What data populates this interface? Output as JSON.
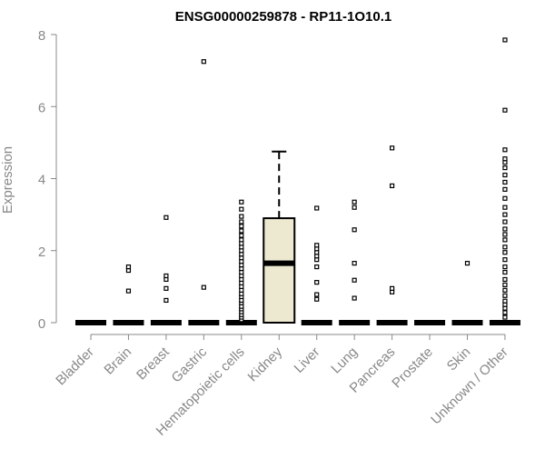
{
  "chart_data": {
    "type": "boxplot",
    "title": "ENSG00000259878 - RP11-1O10.1",
    "ylabel": "Expression",
    "xlabel": "",
    "ylim": [
      0,
      8
    ],
    "yticks": [
      0,
      2,
      4,
      6,
      8
    ],
    "grid": false,
    "legend": "none",
    "categories": [
      "Bladder",
      "Brain",
      "Breast",
      "Gastric",
      "Hematopoietic cells",
      "Kidney",
      "Liver",
      "Lung",
      "Pancreas",
      "Prostate",
      "Skin",
      "Unknown / Other"
    ],
    "boxes": [
      {
        "category": "Bladder",
        "q1": 0,
        "median": 0,
        "q3": 0,
        "whisker_low": 0,
        "whisker_high": 0,
        "outliers": []
      },
      {
        "category": "Brain",
        "q1": 0,
        "median": 0,
        "q3": 0,
        "whisker_low": 0,
        "whisker_high": 0,
        "outliers": [
          0.88,
          1.45,
          1.55
        ]
      },
      {
        "category": "Breast",
        "q1": 0,
        "median": 0,
        "q3": 0,
        "whisker_low": 0,
        "whisker_high": 0,
        "outliers": [
          0.62,
          0.95,
          1.2,
          1.3,
          2.92
        ]
      },
      {
        "category": "Gastric",
        "q1": 0,
        "median": 0,
        "q3": 0,
        "whisker_low": 0,
        "whisker_high": 0,
        "outliers": [
          0.98,
          7.25
        ]
      },
      {
        "category": "Hematopoietic cells",
        "q1": 0,
        "median": 0,
        "q3": 0,
        "whisker_low": 0,
        "whisker_high": 0,
        "outliers": [
          0.08,
          0.15,
          0.22,
          0.3,
          0.38,
          0.45,
          0.55,
          0.62,
          0.72,
          0.8,
          0.9,
          1.0,
          1.1,
          1.2,
          1.3,
          1.4,
          1.5,
          1.6,
          1.7,
          1.8,
          1.9,
          2.0,
          2.1,
          2.2,
          2.3,
          2.42,
          2.55,
          2.68,
          2.8,
          2.95,
          3.15,
          3.35
        ]
      },
      {
        "category": "Kidney",
        "q1": 0,
        "median": 1.65,
        "q3": 2.9,
        "whisker_low": 0,
        "whisker_high": 4.75,
        "outliers": []
      },
      {
        "category": "Liver",
        "q1": 0,
        "median": 0,
        "q3": 0,
        "whisker_low": 0,
        "whisker_high": 0,
        "outliers": [
          0.65,
          0.78,
          1.12,
          1.55,
          1.75,
          1.85,
          1.95,
          2.05,
          2.15,
          3.18
        ]
      },
      {
        "category": "Lung",
        "q1": 0,
        "median": 0,
        "q3": 0,
        "whisker_low": 0,
        "whisker_high": 0,
        "outliers": [
          0.68,
          1.18,
          1.65,
          2.58,
          3.2,
          3.35
        ]
      },
      {
        "category": "Pancreas",
        "q1": 0,
        "median": 0,
        "q3": 0,
        "whisker_low": 0,
        "whisker_high": 0,
        "outliers": [
          0.85,
          0.95,
          3.8,
          4.85
        ]
      },
      {
        "category": "Prostate",
        "q1": 0,
        "median": 0,
        "q3": 0,
        "whisker_low": 0,
        "whisker_high": 0,
        "outliers": []
      },
      {
        "category": "Skin",
        "q1": 0,
        "median": 0,
        "q3": 0,
        "whisker_low": 0,
        "whisker_high": 0,
        "outliers": [
          1.65
        ]
      },
      {
        "category": "Unknown / Other",
        "q1": 0,
        "median": 0,
        "q3": 0,
        "whisker_low": 0,
        "whisker_high": 0,
        "outliers": [
          0.15,
          0.28,
          0.4,
          0.5,
          0.6,
          0.75,
          0.9,
          1.05,
          1.2,
          1.4,
          1.55,
          1.75,
          1.95,
          2.1,
          2.3,
          2.45,
          2.6,
          2.8,
          3.0,
          3.2,
          3.45,
          3.7,
          3.9,
          4.1,
          4.3,
          4.45,
          4.55,
          4.8,
          5.9,
          7.85
        ]
      }
    ],
    "colors": {
      "box_fill": "#ede8d0",
      "box_stroke": "#000000",
      "axis": "#888888",
      "text": "#666666",
      "title": "#000000"
    }
  }
}
